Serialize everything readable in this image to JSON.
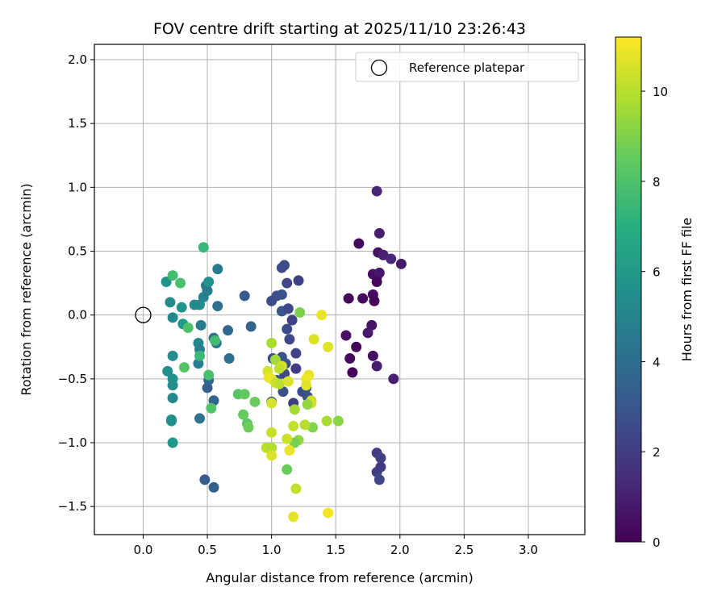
{
  "chart_data": {
    "type": "scatter",
    "title": "FOV centre drift starting at 2025/11/10 23:26:43",
    "xlabel": "Angular distance from reference (arcmin)",
    "ylabel": "Rotation from reference (arcmin)",
    "xlim": [
      -0.38,
      3.44
    ],
    "ylim": [
      -1.72,
      2.12
    ],
    "xticks": [
      0.0,
      0.5,
      1.0,
      1.5,
      2.0,
      2.5,
      3.0
    ],
    "xtick_labels": [
      "0.0",
      "0.5",
      "1.0",
      "1.5",
      "2.0",
      "2.5",
      "3.0"
    ],
    "yticks": [
      -1.5,
      -1.0,
      -0.5,
      0.0,
      0.5,
      1.0,
      1.5,
      2.0
    ],
    "ytick_labels": [
      "−1.5",
      "−1.0",
      "−0.5",
      "0.0",
      "0.5",
      "1.0",
      "1.5",
      "2.0"
    ],
    "grid": true,
    "colorbar": {
      "label": "Hours from first FF file",
      "range": [
        0,
        11.2
      ],
      "ticks": [
        0,
        2,
        4,
        6,
        8,
        10
      ],
      "tick_labels": [
        "0",
        "2",
        "4",
        "6",
        "8",
        "10"
      ],
      "colormap": "viridis"
    },
    "legend": {
      "label": "Reference platepar",
      "position": "top-right"
    },
    "reference": {
      "x": 0.0,
      "y": 0.0
    },
    "points": [
      {
        "x": 1.82,
        "y": 0.97,
        "h": 1.2
      },
      {
        "x": 1.84,
        "y": 0.64,
        "h": 0.9
      },
      {
        "x": 1.68,
        "y": 0.56,
        "h": 0.3
      },
      {
        "x": 1.83,
        "y": 0.49,
        "h": 0.6
      },
      {
        "x": 1.87,
        "y": 0.47,
        "h": 1.0
      },
      {
        "x": 1.93,
        "y": 0.44,
        "h": 1.3
      },
      {
        "x": 2.01,
        "y": 0.4,
        "h": 0.8
      },
      {
        "x": 1.79,
        "y": 0.32,
        "h": 0.4
      },
      {
        "x": 1.82,
        "y": 0.3,
        "h": 0.5
      },
      {
        "x": 1.84,
        "y": 0.33,
        "h": 0.7
      },
      {
        "x": 1.82,
        "y": 0.26,
        "h": 0.2
      },
      {
        "x": 1.6,
        "y": 0.13,
        "h": 0.1
      },
      {
        "x": 1.71,
        "y": 0.13,
        "h": 0.3
      },
      {
        "x": 1.79,
        "y": 0.16,
        "h": 0.4
      },
      {
        "x": 1.8,
        "y": 0.11,
        "h": 0.2
      },
      {
        "x": 1.78,
        "y": -0.08,
        "h": 0.6
      },
      {
        "x": 1.75,
        "y": -0.14,
        "h": 0.8
      },
      {
        "x": 1.58,
        "y": -0.16,
        "h": 0.5
      },
      {
        "x": 1.66,
        "y": -0.25,
        "h": 0.2
      },
      {
        "x": 1.61,
        "y": -0.34,
        "h": 0.3
      },
      {
        "x": 1.79,
        "y": -0.32,
        "h": 0.5
      },
      {
        "x": 1.63,
        "y": -0.45,
        "h": 0.1
      },
      {
        "x": 1.82,
        "y": -0.4,
        "h": 0.9
      },
      {
        "x": 1.95,
        "y": -0.5,
        "h": 1.0
      },
      {
        "x": 1.82,
        "y": -1.08,
        "h": 2.0
      },
      {
        "x": 1.85,
        "y": -1.12,
        "h": 2.2
      },
      {
        "x": 1.85,
        "y": -1.19,
        "h": 1.8
      },
      {
        "x": 1.82,
        "y": -1.23,
        "h": 2.1
      },
      {
        "x": 1.84,
        "y": -1.29,
        "h": 2.4
      },
      {
        "x": 1.1,
        "y": 0.39,
        "h": 2.7
      },
      {
        "x": 1.08,
        "y": 0.37,
        "h": 2.6
      },
      {
        "x": 1.21,
        "y": 0.27,
        "h": 2.2
      },
      {
        "x": 1.12,
        "y": 0.25,
        "h": 2.4
      },
      {
        "x": 1.04,
        "y": 0.15,
        "h": 2.8
      },
      {
        "x": 1.08,
        "y": 0.16,
        "h": 2.9
      },
      {
        "x": 1.0,
        "y": 0.11,
        "h": 2.7
      },
      {
        "x": 1.08,
        "y": 0.03,
        "h": 3.0
      },
      {
        "x": 1.13,
        "y": 0.05,
        "h": 2.5
      },
      {
        "x": 1.16,
        "y": -0.04,
        "h": 2.2
      },
      {
        "x": 1.12,
        "y": -0.11,
        "h": 2.6
      },
      {
        "x": 1.14,
        "y": -0.19,
        "h": 2.4
      },
      {
        "x": 1.19,
        "y": -0.3,
        "h": 2.3
      },
      {
        "x": 1.01,
        "y": -0.34,
        "h": 2.7
      },
      {
        "x": 1.08,
        "y": -0.33,
        "h": 2.8
      },
      {
        "x": 1.11,
        "y": -0.38,
        "h": 2.9
      },
      {
        "x": 1.19,
        "y": -0.42,
        "h": 2.0
      },
      {
        "x": 1.1,
        "y": -0.46,
        "h": 2.4
      },
      {
        "x": 1.04,
        "y": -0.51,
        "h": 3.0
      },
      {
        "x": 1.09,
        "y": -0.6,
        "h": 2.8
      },
      {
        "x": 1.17,
        "y": -0.69,
        "h": 2.1
      },
      {
        "x": 1.24,
        "y": -0.6,
        "h": 2.5
      },
      {
        "x": 1.27,
        "y": -0.57,
        "h": 2.9
      },
      {
        "x": 1.28,
        "y": -0.64,
        "h": 2.7
      },
      {
        "x": 1.0,
        "y": -0.68,
        "h": 2.9
      },
      {
        "x": 0.79,
        "y": 0.15,
        "h": 3.2
      },
      {
        "x": 0.84,
        "y": -0.09,
        "h": 3.5
      },
      {
        "x": 0.58,
        "y": 0.36,
        "h": 4.6
      },
      {
        "x": 0.58,
        "y": 0.07,
        "h": 4.0
      },
      {
        "x": 0.66,
        "y": -0.12,
        "h": 3.8
      },
      {
        "x": 0.67,
        "y": -0.34,
        "h": 4.1
      },
      {
        "x": 0.55,
        "y": -0.18,
        "h": 4.0
      },
      {
        "x": 0.57,
        "y": -0.22,
        "h": 4.4
      },
      {
        "x": 0.5,
        "y": -0.57,
        "h": 3.4
      },
      {
        "x": 0.51,
        "y": -0.51,
        "h": 3.8
      },
      {
        "x": 0.55,
        "y": -0.67,
        "h": 3.7
      },
      {
        "x": 0.44,
        "y": -0.81,
        "h": 4.2
      },
      {
        "x": 0.48,
        "y": -1.29,
        "h": 3.2
      },
      {
        "x": 0.55,
        "y": -1.35,
        "h": 3.5
      },
      {
        "x": 0.43,
        "y": -0.38,
        "h": 4.8
      },
      {
        "x": 0.43,
        "y": -0.22,
        "h": 5.2
      },
      {
        "x": 0.44,
        "y": -0.27,
        "h": 4.9
      },
      {
        "x": 0.45,
        "y": -0.08,
        "h": 4.7
      },
      {
        "x": 0.44,
        "y": 0.08,
        "h": 5.4
      },
      {
        "x": 0.4,
        "y": 0.08,
        "h": 5.3
      },
      {
        "x": 0.47,
        "y": 0.14,
        "h": 5.0
      },
      {
        "x": 0.5,
        "y": 0.19,
        "h": 4.8
      },
      {
        "x": 0.49,
        "y": 0.23,
        "h": 4.5
      },
      {
        "x": 0.51,
        "y": 0.26,
        "h": 5.7
      },
      {
        "x": 0.3,
        "y": 0.06,
        "h": 5.7
      },
      {
        "x": 0.21,
        "y": 0.1,
        "h": 5.4
      },
      {
        "x": 0.23,
        "y": -0.02,
        "h": 5.3
      },
      {
        "x": 0.31,
        "y": -0.07,
        "h": 6.0
      },
      {
        "x": 0.18,
        "y": 0.26,
        "h": 5.8
      },
      {
        "x": 0.23,
        "y": -0.32,
        "h": 5.4
      },
      {
        "x": 0.19,
        "y": -0.44,
        "h": 5.5
      },
      {
        "x": 0.23,
        "y": -0.5,
        "h": 5.7
      },
      {
        "x": 0.23,
        "y": -0.55,
        "h": 5.5
      },
      {
        "x": 0.23,
        "y": -0.65,
        "h": 5.2
      },
      {
        "x": 0.22,
        "y": -0.82,
        "h": 5.8
      },
      {
        "x": 0.22,
        "y": -0.83,
        "h": 5.6
      },
      {
        "x": 0.23,
        "y": -1.0,
        "h": 5.9
      },
      {
        "x": 0.23,
        "y": 0.31,
        "h": 7.8
      },
      {
        "x": 0.29,
        "y": 0.25,
        "h": 7.9
      },
      {
        "x": 0.47,
        "y": 0.53,
        "h": 7.5
      },
      {
        "x": 0.35,
        "y": -0.1,
        "h": 8.0
      },
      {
        "x": 0.32,
        "y": -0.41,
        "h": 8.2
      },
      {
        "x": 0.44,
        "y": -0.32,
        "h": 7.6
      },
      {
        "x": 0.56,
        "y": -0.2,
        "h": 7.8
      },
      {
        "x": 0.51,
        "y": -0.47,
        "h": 7.9
      },
      {
        "x": 0.53,
        "y": -0.73,
        "h": 8.1
      },
      {
        "x": 0.74,
        "y": -0.62,
        "h": 8.2
      },
      {
        "x": 0.79,
        "y": -0.62,
        "h": 8.4
      },
      {
        "x": 0.87,
        "y": -0.68,
        "h": 8.6
      },
      {
        "x": 0.78,
        "y": -0.78,
        "h": 8.5
      },
      {
        "x": 0.81,
        "y": -0.85,
        "h": 8.3
      },
      {
        "x": 0.82,
        "y": -0.88,
        "h": 8.7
      },
      {
        "x": 1.22,
        "y": 0.02,
        "h": 9.0
      },
      {
        "x": 1.39,
        "y": 0.0,
        "h": 10.9
      },
      {
        "x": 1.33,
        "y": -0.19,
        "h": 10.6
      },
      {
        "x": 1.44,
        "y": -0.25,
        "h": 10.7
      },
      {
        "x": 1.0,
        "y": -0.22,
        "h": 9.8
      },
      {
        "x": 1.03,
        "y": -0.35,
        "h": 9.6
      },
      {
        "x": 1.08,
        "y": -0.4,
        "h": 10.5
      },
      {
        "x": 1.06,
        "y": -0.42,
        "h": 10.2
      },
      {
        "x": 0.97,
        "y": -0.44,
        "h": 10.5
      },
      {
        "x": 0.98,
        "y": -0.49,
        "h": 10.8
      },
      {
        "x": 1.0,
        "y": -0.5,
        "h": 10.9
      },
      {
        "x": 1.03,
        "y": -0.53,
        "h": 10.4
      },
      {
        "x": 1.06,
        "y": -0.54,
        "h": 10.1
      },
      {
        "x": 1.13,
        "y": -0.52,
        "h": 10.6
      },
      {
        "x": 1.29,
        "y": -0.47,
        "h": 10.8
      },
      {
        "x": 1.27,
        "y": -0.5,
        "h": 11.0
      },
      {
        "x": 1.27,
        "y": -0.55,
        "h": 10.7
      },
      {
        "x": 1.31,
        "y": -0.67,
        "h": 10.3
      },
      {
        "x": 1.31,
        "y": -0.69,
        "h": 10.5
      },
      {
        "x": 1.28,
        "y": -0.7,
        "h": 9.4
      },
      {
        "x": 1.32,
        "y": -0.88,
        "h": 9.1
      },
      {
        "x": 1.18,
        "y": -0.74,
        "h": 9.7
      },
      {
        "x": 1.26,
        "y": -0.86,
        "h": 10.0
      },
      {
        "x": 1.17,
        "y": -0.87,
        "h": 10.2
      },
      {
        "x": 1.21,
        "y": -0.98,
        "h": 9.3
      },
      {
        "x": 1.18,
        "y": -1.0,
        "h": 8.9
      },
      {
        "x": 1.12,
        "y": -0.97,
        "h": 10.4
      },
      {
        "x": 0.96,
        "y": -1.04,
        "h": 10.1
      },
      {
        "x": 1.0,
        "y": -1.04,
        "h": 9.9
      },
      {
        "x": 1.14,
        "y": -1.06,
        "h": 10.9
      },
      {
        "x": 1.0,
        "y": -1.1,
        "h": 10.6
      },
      {
        "x": 1.0,
        "y": -0.92,
        "h": 10.3
      },
      {
        "x": 1.0,
        "y": -0.69,
        "h": 10.5
      },
      {
        "x": 1.12,
        "y": -1.21,
        "h": 8.6
      },
      {
        "x": 1.19,
        "y": -1.36,
        "h": 10.2
      },
      {
        "x": 1.17,
        "y": -1.58,
        "h": 10.8
      },
      {
        "x": 1.44,
        "y": -1.55,
        "h": 11.0
      },
      {
        "x": 1.43,
        "y": -0.83,
        "h": 9.8
      },
      {
        "x": 1.52,
        "y": -0.83,
        "h": 9.2
      }
    ]
  }
}
